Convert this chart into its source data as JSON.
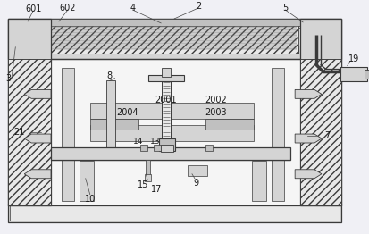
{
  "bg_color": "#f0f0f5",
  "line_color": "#3a3a3a",
  "fill_light": "#e8e8e8",
  "fill_mid": "#d4d4d4",
  "fill_dark": "#c0c0c0",
  "fill_white": "#f5f5f5",
  "hatch_fill": "#dcdcdc",
  "label_fs": 7.0,
  "label_color": "#1a1a1a",
  "lw_main": 0.9,
  "lw_thin": 0.5,
  "lw_thick": 1.3
}
